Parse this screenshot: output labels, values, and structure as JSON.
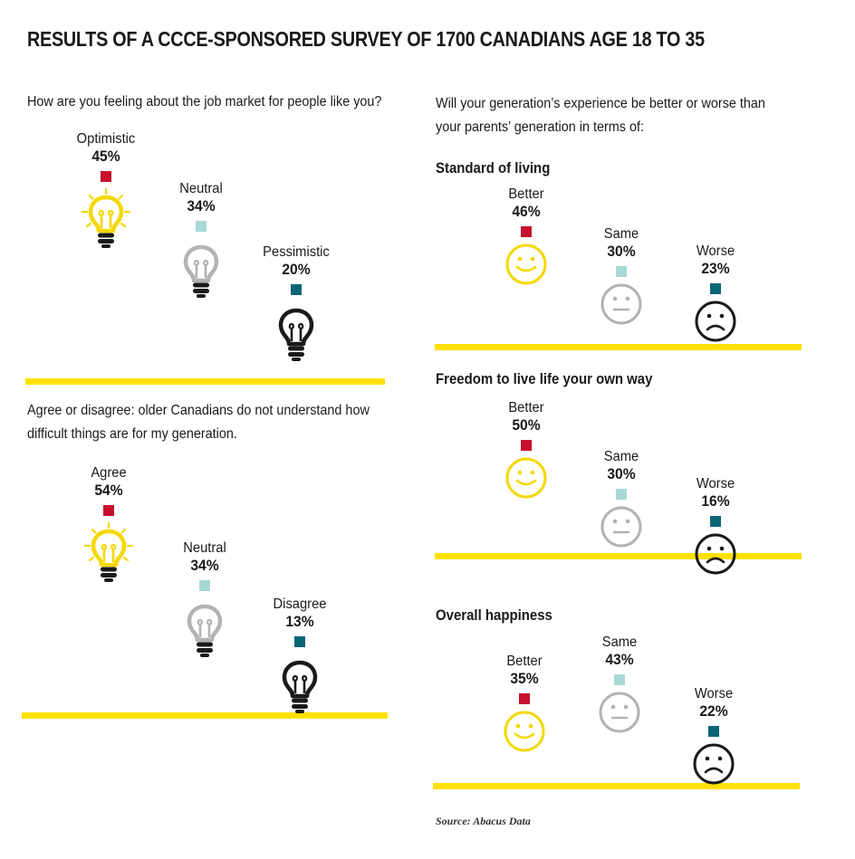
{
  "title": "RESULTS OF A CCCE-SPONSORED SURVEY OF 1700 CANADIANS AGE 18 TO 35",
  "source": "Source: Abacus Data",
  "colors": {
    "positive": "#f5d800",
    "neutral": "#b3b3b3",
    "negative": "#1a1a1a",
    "square_positive": "#c8102e",
    "square_neutral": "#a8d9d6",
    "square_negative": "#0b6678",
    "rule": "#fde100"
  },
  "chart_data": [
    {
      "type": "pictogram",
      "icon": "lightbulb-icon",
      "question": "How are you feeling about the job market for people like you?",
      "categories": [
        "Optimistic",
        "Neutral",
        "Pessimistic"
      ],
      "values": [
        45,
        34,
        20
      ],
      "value_labels": [
        "45%",
        "34%",
        "20%"
      ],
      "unit": "%"
    },
    {
      "type": "pictogram",
      "icon": "lightbulb-icon",
      "question": "Agree or disagree: older Canadians do not understand how difficult things are for my generation.",
      "categories": [
        "Agree",
        "Neutral",
        "Disagree"
      ],
      "values": [
        54,
        34,
        13
      ],
      "value_labels": [
        "54%",
        "34%",
        "13%"
      ],
      "unit": "%"
    },
    {
      "type": "pictogram",
      "icon": "face-icon",
      "question": "Will your generation’s experience be better or worse than your parents’ generation in terms of:",
      "subtitle": "Standard of living",
      "categories": [
        "Better",
        "Same",
        "Worse"
      ],
      "values": [
        46,
        30,
        23
      ],
      "value_labels": [
        "46%",
        "30%",
        "23%"
      ],
      "unit": "%"
    },
    {
      "type": "pictogram",
      "icon": "face-icon",
      "subtitle": "Freedom to live life your own way",
      "categories": [
        "Better",
        "Same",
        "Worse"
      ],
      "values": [
        50,
        30,
        16
      ],
      "value_labels": [
        "50%",
        "30%",
        "16%"
      ],
      "unit": "%"
    },
    {
      "type": "pictogram",
      "icon": "face-icon",
      "subtitle": "Overall happiness",
      "categories": [
        "Better",
        "Same",
        "Worse"
      ],
      "values": [
        35,
        43,
        22
      ],
      "value_labels": [
        "35%",
        "43%",
        "22%"
      ],
      "unit": "%"
    }
  ]
}
